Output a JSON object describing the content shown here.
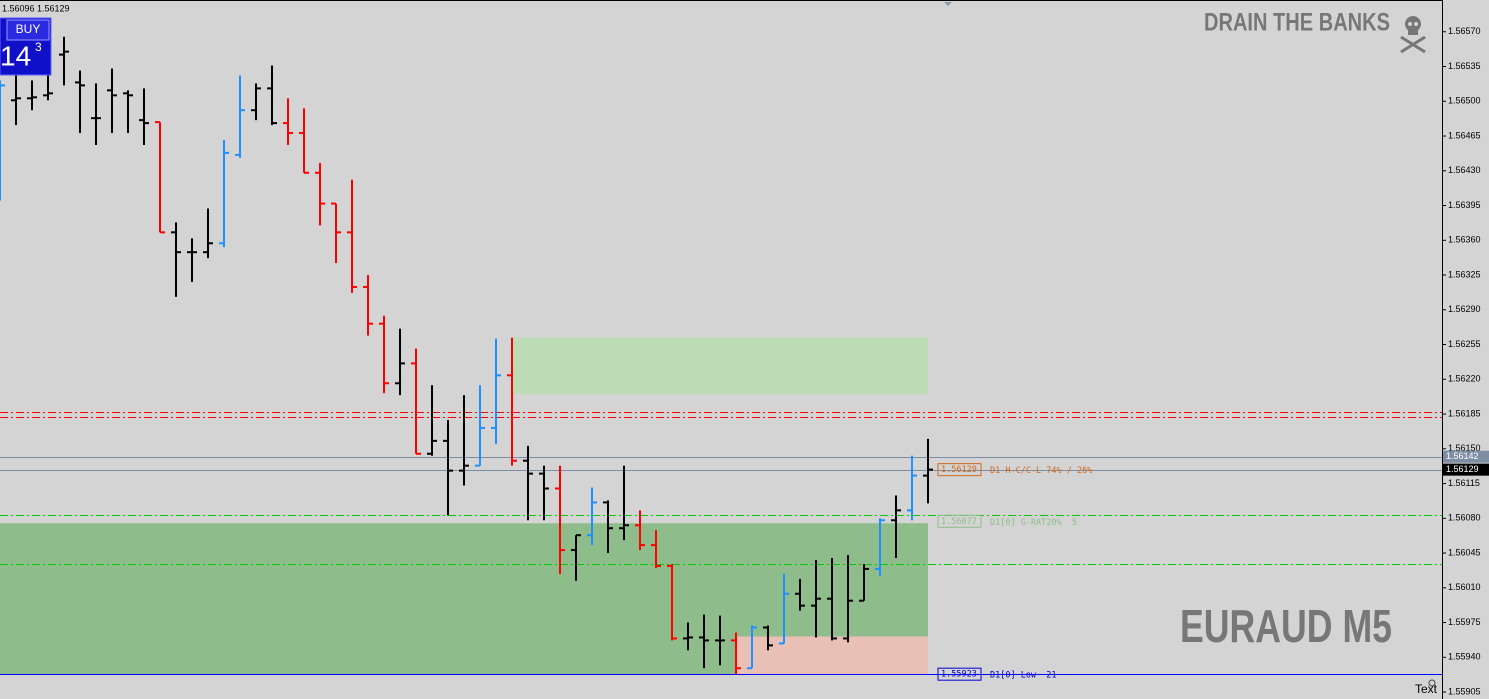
{
  "chart_data": {
    "type": "ohlc",
    "title": "EURAUD M5",
    "watermark": "DRAIN THE BANKS",
    "ylim": [
      1.55898,
      1.56602
    ],
    "yticks": [
      {
        "value": 1.5657,
        "label": "1.56570"
      },
      1.56535,
      {
        "value": 1.565,
        "label": "1.56500"
      },
      1.56465,
      {
        "value": 1.5643,
        "label": "1.56430"
      },
      1.56395,
      {
        "value": 1.5636,
        "label": "1.56360"
      },
      1.56325,
      {
        "value": 1.5629,
        "label": "1.56290"
      },
      1.56255,
      {
        "value": 1.5622,
        "label": "1.56220"
      },
      1.56185,
      {
        "value": 1.5615,
        "label": "1.56150"
      },
      1.56115,
      {
        "value": 1.5608,
        "label": "1.56080"
      },
      1.56045,
      {
        "value": 1.5601,
        "label": "1.56010"
      },
      1.55975,
      {
        "value": 1.5594,
        "label": "1.55940"
      },
      1.55905
    ],
    "open": [
      1.56501,
      1.56501,
      1.56503,
      1.56506,
      1.56547,
      1.56519,
      1.56483,
      1.56511,
      1.56508,
      1.56481,
      1.56479,
      1.56368,
      1.56348,
      1.56348,
      1.56357,
      1.56446,
      1.56491,
      1.56513,
      1.56478,
      1.56468,
      1.56428,
      1.56397,
      1.56368,
      1.56313,
      1.56276,
      1.56216,
      1.56236,
      1.56145,
      1.56158,
      1.56128,
      1.56133,
      1.56171,
      1.56224,
      1.56138,
      1.56125,
      1.5611,
      1.56048,
      1.56063,
      1.56096,
      1.5607,
      1.56073,
      1.56053,
      1.56032,
      1.55959,
      1.5596,
      1.55957,
      1.55957,
      1.55929,
      1.5597,
      1.55954,
      1.56004,
      1.55992,
      1.55999,
      1.55959,
      1.55997,
      1.56029,
      1.56078,
      1.56088,
      1.56123
    ],
    "high": [
      1.56521,
      1.56526,
      1.56521,
      1.56526,
      1.56565,
      1.56531,
      1.56518,
      1.56533,
      1.56511,
      1.56513,
      1.56479,
      1.56378,
      1.56362,
      1.56392,
      1.56461,
      1.56526,
      1.56518,
      1.56536,
      1.56503,
      1.56493,
      1.56438,
      1.56397,
      1.56421,
      1.56325,
      1.56284,
      1.56271,
      1.56251,
      1.56214,
      1.56179,
      1.56204,
      1.56214,
      1.56261,
      1.56262,
      1.56153,
      1.56133,
      1.56133,
      1.56063,
      1.56111,
      1.56098,
      1.56133,
      1.56088,
      1.56068,
      1.56034,
      1.55975,
      1.55983,
      1.55982,
      1.55965,
      1.55972,
      1.55972,
      1.56024,
      1.56019,
      1.56038,
      1.5604,
      1.56043,
      1.56034,
      1.5608,
      1.56103,
      1.56143,
      1.5616
    ],
    "low": [
      1.564,
      1.56476,
      1.56491,
      1.56501,
      1.56516,
      1.56468,
      1.56456,
      1.56468,
      1.56468,
      1.56456,
      1.56368,
      1.56303,
      1.56318,
      1.56342,
      1.56353,
      1.56443,
      1.56481,
      1.56476,
      1.56456,
      1.56428,
      1.56375,
      1.56337,
      1.56307,
      1.56264,
      1.56206,
      1.56204,
      1.56145,
      1.56143,
      1.56083,
      1.56113,
      1.56133,
      1.56155,
      1.56133,
      1.56078,
      1.56078,
      1.56024,
      1.56017,
      1.56053,
      1.56045,
      1.56058,
      1.56048,
      1.5603,
      1.55957,
      1.55947,
      1.55929,
      1.55932,
      1.55923,
      1.55929,
      1.55947,
      1.55954,
      1.55987,
      1.5596,
      1.55957,
      1.55955,
      1.55997,
      1.56022,
      1.5604,
      1.56078,
      1.56095
    ],
    "close": [
      1.56516,
      1.56503,
      1.56504,
      1.56508,
      1.5655,
      1.56516,
      1.56483,
      1.56506,
      1.56506,
      1.56478,
      1.56368,
      1.56348,
      1.56348,
      1.56357,
      1.56448,
      1.56491,
      1.56513,
      1.56478,
      1.56468,
      1.56428,
      1.56397,
      1.56368,
      1.56313,
      1.56276,
      1.56216,
      1.56236,
      1.56145,
      1.56158,
      1.56128,
      1.56133,
      1.56171,
      1.56224,
      1.56138,
      1.56125,
      1.5611,
      1.56048,
      1.56063,
      1.56096,
      1.5607,
      1.56073,
      1.56053,
      1.56032,
      1.55959,
      1.5596,
      1.55957,
      1.55957,
      1.55929,
      1.5597,
      1.55952,
      1.56004,
      1.55992,
      1.55999,
      1.55959,
      1.55997,
      1.56029,
      1.56078,
      1.56088,
      1.56123,
      1.56129
    ],
    "bar_colors": [
      "#1e90ff",
      "#000000",
      "#000000",
      "#000000",
      "#000000",
      "#000000",
      "#000000",
      "#000000",
      "#000000",
      "#000000",
      "#ff0000",
      "#000000",
      "#000000",
      "#000000",
      "#1e90ff",
      "#1e90ff",
      "#000000",
      "#000000",
      "#ff0000",
      "#ff0000",
      "#ff0000",
      "#ff0000",
      "#ff0000",
      "#ff0000",
      "#ff0000",
      "#000000",
      "#ff0000",
      "#000000",
      "#000000",
      "#000000",
      "#1e90ff",
      "#1e90ff",
      "#ff0000",
      "#000000",
      "#000000",
      "#ff0000",
      "#000000",
      "#1e90ff",
      "#000000",
      "#000000",
      "#ff0000",
      "#ff0000",
      "#ff0000",
      "#000000",
      "#000000",
      "#000000",
      "#ff0000",
      "#1e90ff",
      "#000000",
      "#1e90ff",
      "#000000",
      "#000000",
      "#000000",
      "#000000",
      "#000000",
      "#1e90ff",
      "#000000",
      "#1e90ff",
      "#000000"
    ],
    "zones": [
      {
        "top": 1.56262,
        "bottom": 1.56205,
        "color": "#bddcb5"
      },
      {
        "top": 1.56075,
        "bottom": 1.55923,
        "color": "#8fbc8b"
      },
      {
        "top": 1.55961,
        "bottom": 1.55923,
        "color": "#e8c0b6"
      }
    ],
    "hlines": [
      {
        "value": 1.56187,
        "color": "#ff0000",
        "style": "dashdot"
      },
      {
        "value": 1.56182,
        "color": "#ff0000",
        "style": "dashdot"
      },
      {
        "value": 1.56083,
        "color": "#00cc00",
        "style": "dashdot"
      },
      {
        "value": 1.56034,
        "color": "#00cc00",
        "style": "dashdot"
      },
      {
        "value": 1.56142,
        "color": "#7d8ea4",
        "style": "solid"
      },
      {
        "value": 1.56129,
        "color": "#7d8ea4",
        "style": "solid"
      },
      {
        "value": 1.55923,
        "color": "#0000ff",
        "style": "solid"
      }
    ],
    "level_labels": [
      {
        "value": 1.56129,
        "text": "D1 H-C/C-L 74% / 26%",
        "color": "#d2691e"
      },
      {
        "value": 1.56077,
        "text": "D1[0] G-RAT20%  5",
        "color": "#8fbc8b"
      },
      {
        "value": 1.55923,
        "text": "D1[0] Low  21",
        "color": "#0000cc"
      }
    ],
    "price_tags": [
      {
        "value": 1.56142,
        "color": "#7d8ea4"
      },
      {
        "value": 1.56129,
        "color": "#000000"
      }
    ]
  },
  "ui": {
    "header": "1.56096 1.56129",
    "button": "BUY",
    "price_big": "14",
    "price_small": "3",
    "corner_text": "Text"
  }
}
